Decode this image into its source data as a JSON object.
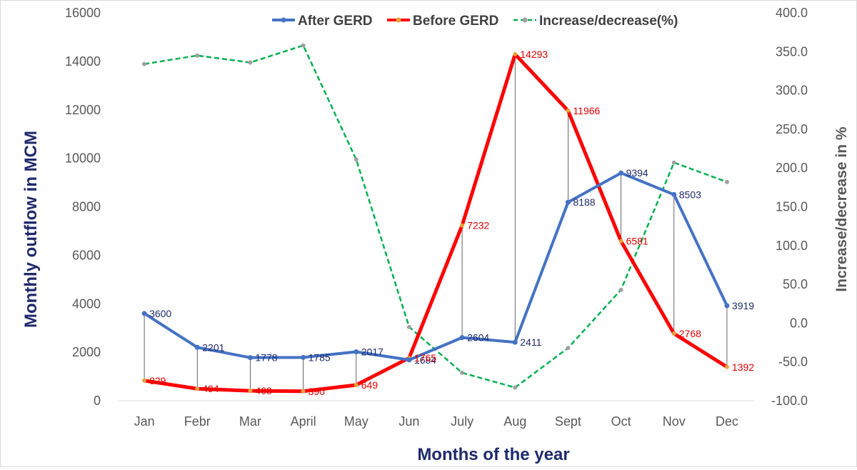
{
  "chart_data": {
    "type": "line",
    "categories": [
      "Jan",
      "Febr",
      "Mar",
      "April",
      "May",
      "Jun",
      "July",
      "Aug",
      "Sept",
      "Oct",
      "Nov",
      "Dec"
    ],
    "series": [
      {
        "name": "After GERD",
        "axis": "left",
        "color": "#4472c4",
        "style": "solid",
        "values": [
          3600,
          2201,
          1778,
          1785,
          2017,
          1684,
          2604,
          2411,
          8188,
          9394,
          8503,
          3919
        ],
        "labels": [
          "3600",
          "2201",
          "1778",
          "1785",
          "2017",
          "1684",
          "2604",
          "2411",
          "8188",
          "9394",
          "8503",
          "3919"
        ]
      },
      {
        "name": "Before GERD",
        "axis": "left",
        "color": "#ff0000",
        "style": "solid",
        "values": [
          829,
          494,
          408,
          390,
          649,
          1765,
          7232,
          14293,
          11966,
          6581,
          2768,
          1392
        ],
        "labels": [
          "829",
          "494",
          "408",
          "390",
          "649",
          "1765",
          "7232",
          "14293",
          "11966",
          "6581",
          "2768",
          "1392"
        ]
      },
      {
        "name": "Increase/decrease(%)",
        "axis": "right",
        "color": "#00b050",
        "style": "dashed",
        "values": [
          334,
          345,
          336,
          358,
          211,
          -5,
          -64,
          -83,
          -32,
          43,
          207,
          182
        ]
      }
    ],
    "xlabel": "Months of the year",
    "ylabel": "Monthly outflow in MCM",
    "y2label": "Increase/decrease in %",
    "ylim": [
      0,
      16000
    ],
    "y_ticks": [
      "0",
      "2000",
      "4000",
      "6000",
      "8000",
      "10000",
      "12000",
      "14000",
      "16000"
    ],
    "y2lim": [
      -100,
      400
    ],
    "y2_ticks": [
      "-100.0",
      "-50.0",
      "0.0",
      "50.0",
      "100.0",
      "150.0",
      "200.0",
      "250.0",
      "300.0",
      "350.0",
      "400.0"
    ],
    "grid": false,
    "legend": "top",
    "drop_lines": true
  }
}
